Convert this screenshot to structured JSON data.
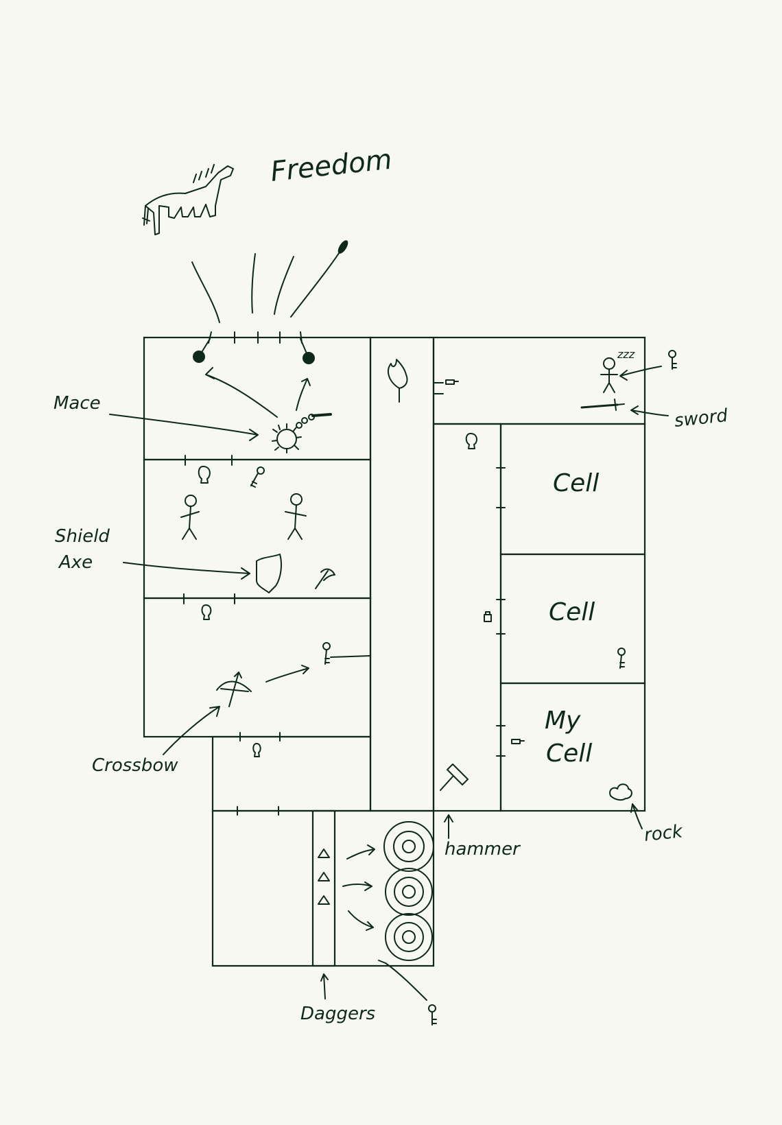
{
  "labels": {
    "freedom": "Freedom",
    "mace": "Mace",
    "shield": "Shield",
    "axe": "Axe",
    "crossbow": "Crossbow",
    "sword": "sword",
    "cell_top": "Cell",
    "cell_middle": "Cell",
    "my_cell_line1": "My",
    "my_cell_line2": "Cell",
    "hammer": "hammer",
    "rock": "rock",
    "daggers": "Daggers",
    "zzz": "zzz"
  },
  "colors": {
    "ink": "#0e2a16",
    "paper": "#f7f8f2"
  }
}
